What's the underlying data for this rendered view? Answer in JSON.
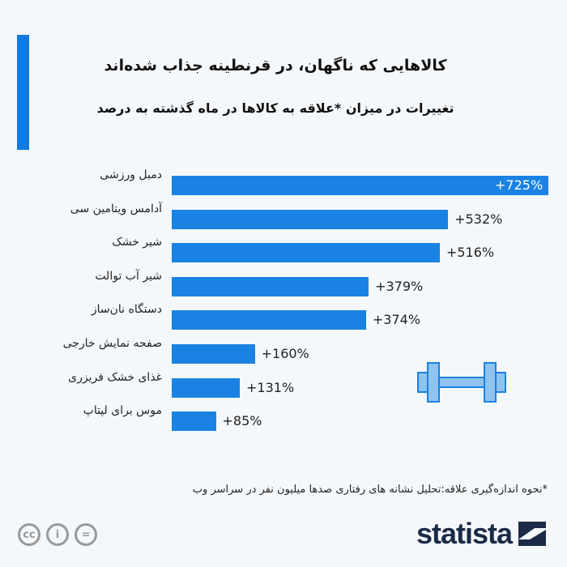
{
  "chart_data": {
    "type": "bar",
    "orientation": "horizontal",
    "title": "کالاهایی که ناگهان، در قرنطینه جذاب شده‌اند",
    "subtitle": "تغییرات در میزان *علاقه به کالاها در ماه گذشته به درصد",
    "categories": [
      "دمبل ورزشی",
      "آدامس ویتامین سی",
      "شیر خشک",
      "شیر آب توالت",
      "دستگاه نان‌ساز",
      "صفحه نمایش خارجی",
      "غذای خشک فریزری",
      "موس برای لپتاپ"
    ],
    "values": [
      725,
      532,
      516,
      379,
      374,
      160,
      131,
      85
    ],
    "labels": [
      "+725%",
      "+532%",
      "+516%",
      "+379%",
      "+374%",
      "+160%",
      "+131%",
      "+85%"
    ],
    "xlim": [
      0,
      725
    ],
    "grid": false,
    "bar_color": "#1a82e2"
  },
  "footnote": "*نحوه اندازه‌گیری علاقه:تحلیل نشانه های رفتاری صدها میلیون نفر در سراسر وب",
  "brand": "statista",
  "license_icons": [
    "cc-icon",
    "attribution-icon",
    "no-derivatives-icon"
  ],
  "accent_color": "#0f7be0"
}
